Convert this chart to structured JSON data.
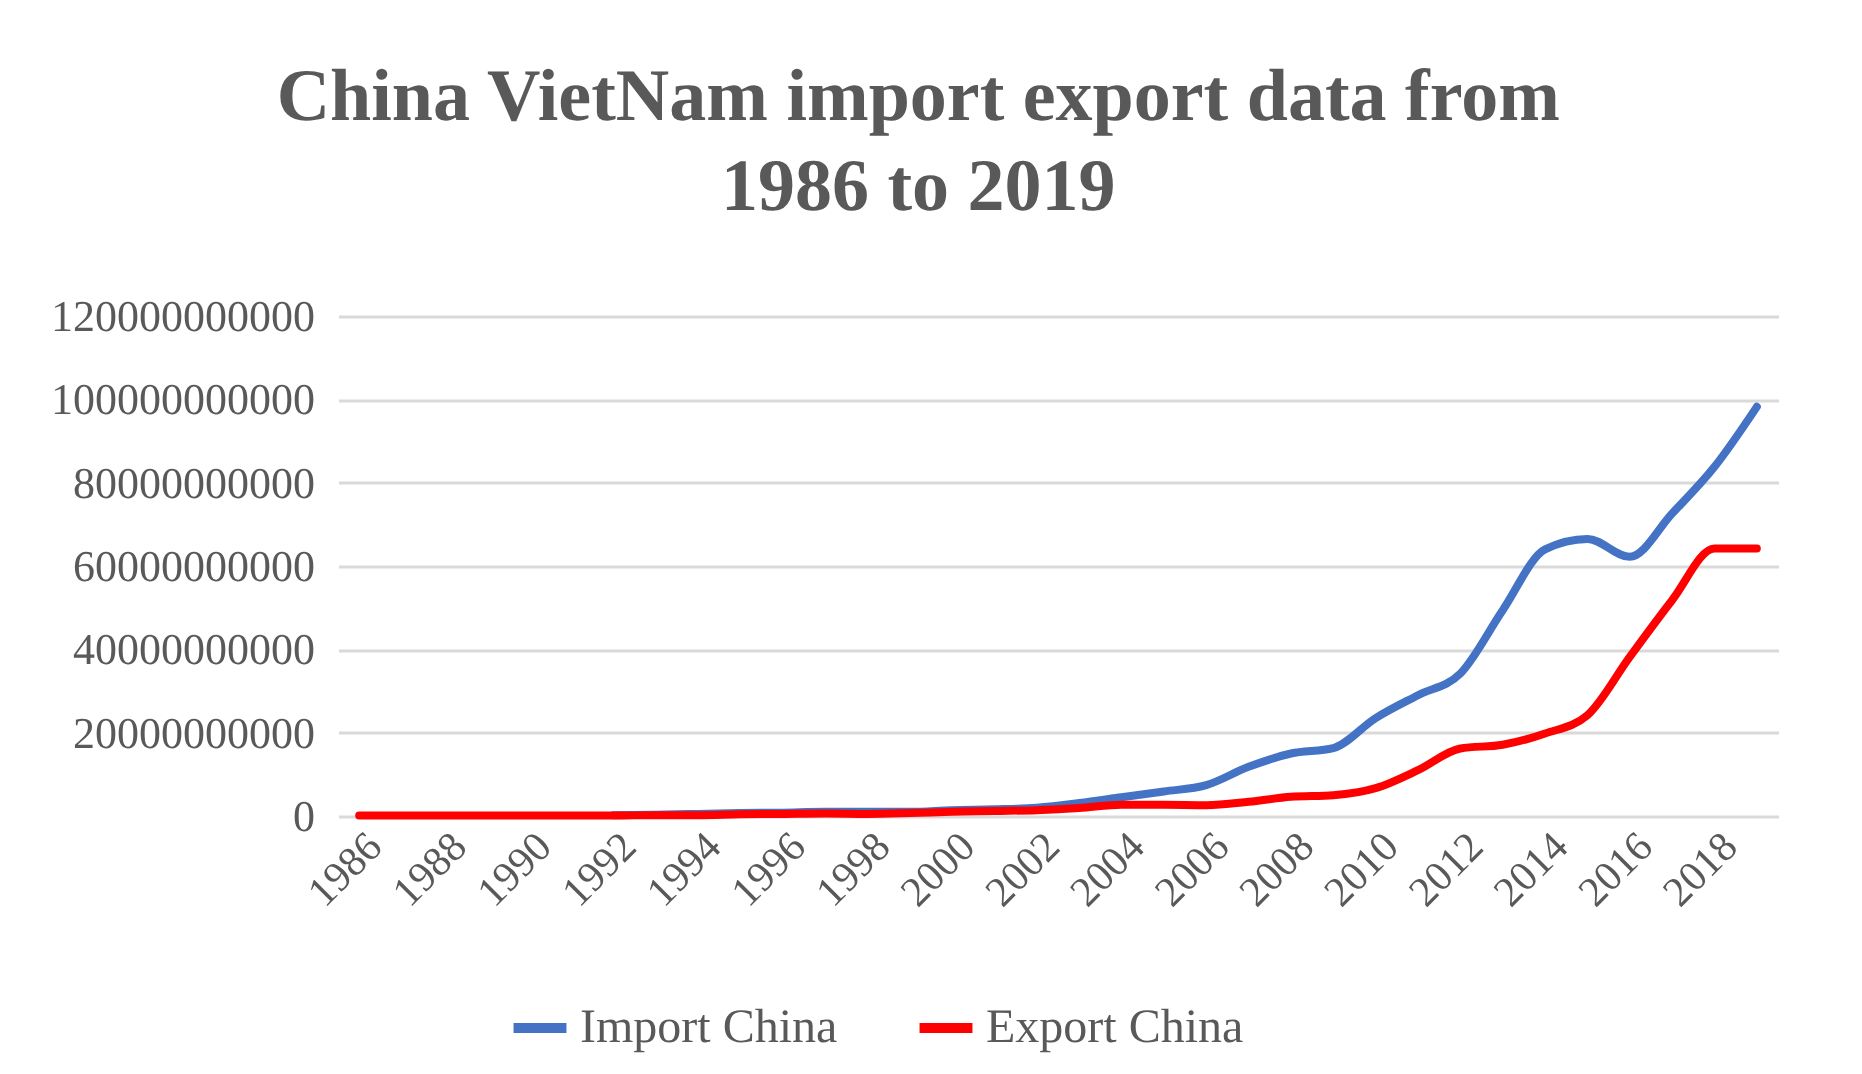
{
  "chart_data": {
    "type": "line",
    "title": "China VietNam import export data from 1986 to 2019",
    "categories": [
      "1986",
      null,
      "1988",
      null,
      "1990",
      null,
      "1992",
      null,
      "1994",
      null,
      "1996",
      null,
      "1998",
      null,
      "2000",
      null,
      "2002",
      null,
      "2004",
      null,
      "2006",
      null,
      "2008",
      null,
      "2010",
      null,
      "2012",
      null,
      "2014",
      null,
      "2016",
      null,
      "2018",
      null
    ],
    "series": [
      {
        "name": "Import China",
        "color": "#4472c4",
        "values": [
          null,
          null,
          null,
          null,
          null,
          null,
          200000000,
          300000000,
          500000000,
          700000000,
          800000000,
          1000000000,
          1000000000,
          1000000000,
          1400000000,
          1600000000,
          2000000000,
          3100000000,
          4500000000,
          5900000000,
          7400000000,
          11800000000,
          15000000000,
          16300000000,
          23500000000,
          29000000000,
          34200000000,
          49400000000,
          64000000000,
          66500000000,
          62200000000,
          72600000000,
          83800000000,
          98200000000
        ]
      },
      {
        "name": "Export China",
        "color": "#ff0000",
        "values": [
          100000000,
          100000000,
          100000000,
          100000000,
          100000000,
          100000000,
          100000000,
          200000000,
          200000000,
          400000000,
          500000000,
          600000000,
          500000000,
          700000000,
          1000000000,
          1200000000,
          1400000000,
          1900000000,
          2700000000,
          2700000000,
          2600000000,
          3400000000,
          4600000000,
          5000000000,
          6700000000,
          11000000000,
          16200000000,
          17100000000,
          19800000000,
          24200000000,
          38200000000,
          51800000000,
          64200000000,
          64200000000
        ]
      }
    ],
    "ylim": [
      0,
      120000000000
    ],
    "yticks": [
      0,
      20000000000,
      40000000000,
      60000000000,
      80000000000,
      100000000000,
      120000000000
    ],
    "grid": "y",
    "legend": "bottom",
    "line_style": "solid",
    "marker": "none"
  }
}
